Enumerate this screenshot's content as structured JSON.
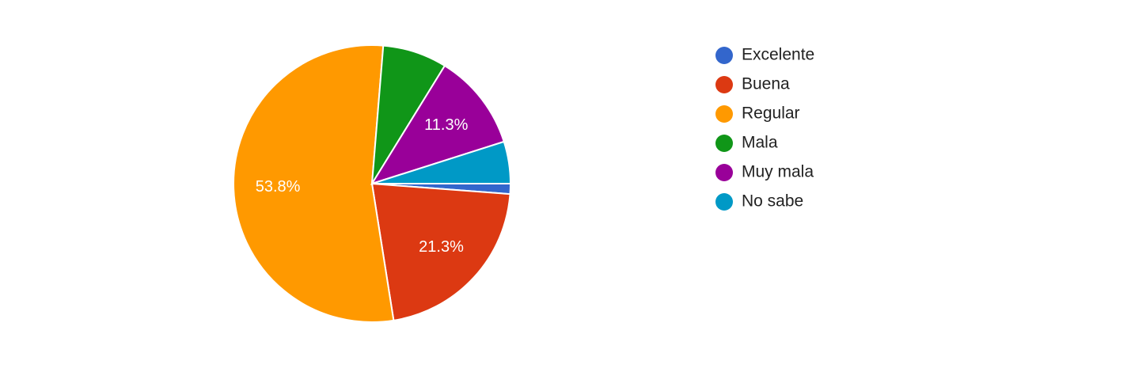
{
  "chart_data": {
    "type": "pie",
    "categories": [
      "Excelente",
      "Buena",
      "Regular",
      "Mala",
      "Muy mala",
      "No sabe"
    ],
    "values": [
      1.2,
      21.3,
      53.8,
      7.5,
      11.3,
      4.9
    ],
    "value_labels": [
      null,
      "21.3%",
      "53.8%",
      null,
      "11.3%",
      null
    ],
    "colors": [
      "#3366cc",
      "#dc3912",
      "#ff9900",
      "#109618",
      "#990099",
      "#0099c6"
    ],
    "legend": "right"
  }
}
